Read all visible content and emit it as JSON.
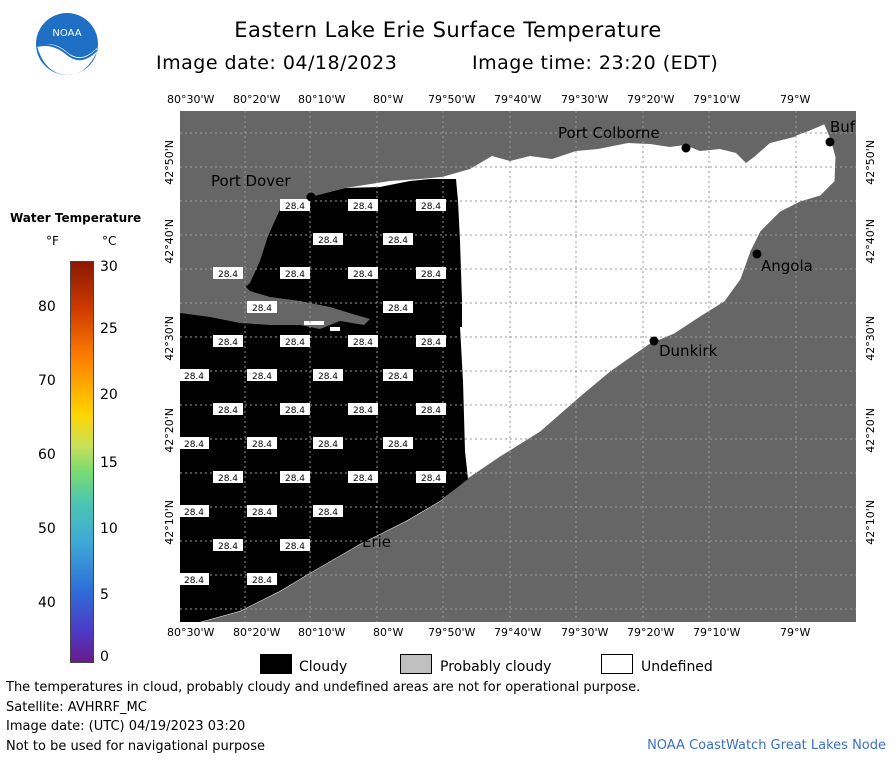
{
  "header": {
    "logo_text": "NOAA",
    "title": "Eastern Lake Erie Surface Temperature",
    "image_date_label": "Image date: 04/18/2023",
    "image_time_label": "Image time: 23:20 (EDT)"
  },
  "map": {
    "lon_ticks": [
      "80°30'W",
      "80°20'W",
      "80°10'W",
      "80°W",
      "79°50'W",
      "79°40'W",
      "79°30'W",
      "79°20'W",
      "79°10'W",
      "79°W"
    ],
    "lat_ticks": [
      "42°50'N",
      "42°40'N",
      "42°30'N",
      "42°20'N",
      "42°10'N"
    ],
    "places": [
      {
        "name": "Port Colborne"
      },
      {
        "name": "Port Dover"
      },
      {
        "name": "Angola"
      },
      {
        "name": "Dunkirk"
      },
      {
        "name": "Erie"
      },
      {
        "name": "Buf"
      }
    ],
    "cell_value": "28.4",
    "colors": {
      "land": "#666666",
      "cloud": "#000000",
      "undefined": "#ffffff",
      "grid": "#9a9a9a"
    }
  },
  "colorbar": {
    "title": "Water Temperature",
    "unit_f": "°F",
    "unit_c": "°C",
    "f_labels": [
      "80",
      "70",
      "60",
      "50",
      "40"
    ],
    "c_labels": [
      "30",
      "25",
      "20",
      "15",
      "10",
      "5",
      "0"
    ]
  },
  "key": {
    "items": [
      {
        "label": "Cloudy",
        "color": "#000000"
      },
      {
        "label": "Probably cloudy",
        "color": "#c0c0c0"
      },
      {
        "label": "Undefined",
        "color": "#ffffff"
      }
    ]
  },
  "footer": {
    "note": "The temperatures in cloud, probably cloudy and undefined areas are not for operational purpose.",
    "satellite": "Satellite: AVHRRF_MC",
    "utc_date": "Image date: (UTC) 04/19/2023  03:20",
    "nav": "Not to be used for navigational purpose",
    "credit": "NOAA CoastWatch Great Lakes Node"
  }
}
